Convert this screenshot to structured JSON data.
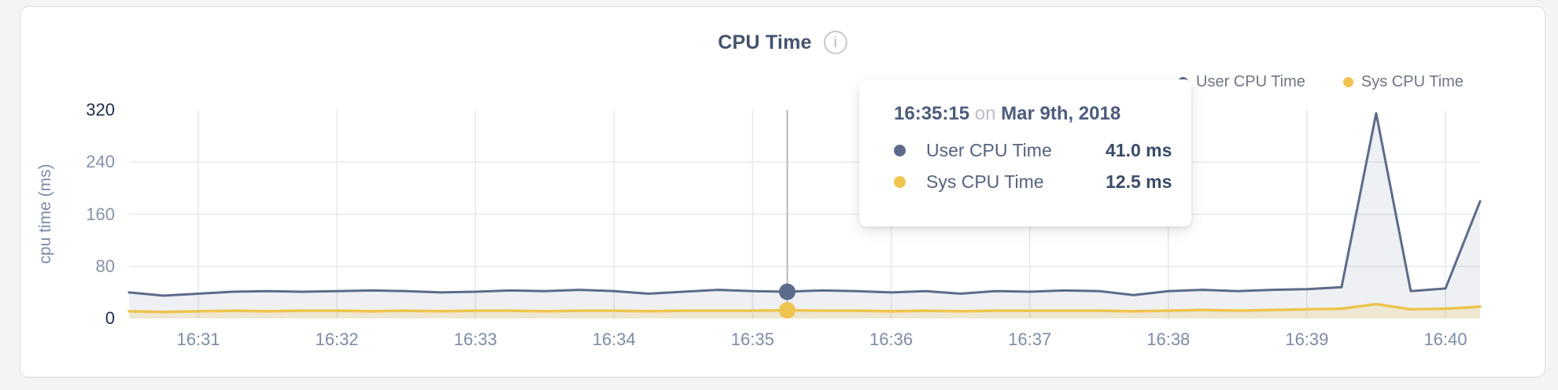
{
  "header": {
    "title": "CPU Time",
    "info_icon": "i"
  },
  "legend": [
    {
      "label": "User CPU Time",
      "color": "#5d6b8a"
    },
    {
      "label": "Sys CPU Time",
      "color": "#eec44f"
    }
  ],
  "tooltip": {
    "time": "16:35:15",
    "on_word": "on",
    "date": "Mar 9th, 2018",
    "highlight_index": 19,
    "rows": [
      {
        "label": "User CPU Time",
        "value": "41.0 ms",
        "color": "#5d6b8a"
      },
      {
        "label": "Sys CPU Time",
        "value": "12.5 ms",
        "color": "#eec44f"
      }
    ]
  },
  "chart_data": {
    "type": "area",
    "title": "CPU Time",
    "xlabel": "",
    "ylabel": "cpu time (ms)",
    "ylim": [
      0,
      320
    ],
    "grid": true,
    "legend_position": "top-right",
    "yticks": [
      {
        "label": "320",
        "value": 320,
        "strong": true,
        "grid": false
      },
      {
        "label": "240",
        "value": 240,
        "strong": false,
        "grid": true
      },
      {
        "label": "160",
        "value": 160,
        "strong": false,
        "grid": true
      },
      {
        "label": "80",
        "value": 80,
        "strong": false,
        "grid": true
      },
      {
        "label": "0",
        "value": 0,
        "strong": true,
        "grid": false
      }
    ],
    "xticks": [
      "16:31",
      "16:32",
      "16:33",
      "16:34",
      "16:35",
      "16:36",
      "16:37",
      "16:38",
      "16:39",
      "16:40"
    ],
    "x": [
      "16:30:30",
      "16:30:45",
      "16:31:00",
      "16:31:15",
      "16:31:30",
      "16:31:45",
      "16:32:00",
      "16:32:15",
      "16:32:30",
      "16:32:45",
      "16:33:00",
      "16:33:15",
      "16:33:30",
      "16:33:45",
      "16:34:00",
      "16:34:15",
      "16:34:30",
      "16:34:45",
      "16:35:00",
      "16:35:15",
      "16:35:30",
      "16:35:45",
      "16:36:00",
      "16:36:15",
      "16:36:30",
      "16:36:45",
      "16:37:00",
      "16:37:15",
      "16:37:30",
      "16:37:45",
      "16:38:00",
      "16:38:15",
      "16:38:30",
      "16:38:45",
      "16:39:00",
      "16:39:15",
      "16:39:30",
      "16:39:45",
      "16:40:00",
      "16:40:15"
    ],
    "series": [
      {
        "name": "User CPU Time",
        "color": "#5d6b8a",
        "fill": "rgba(93,107,138,0.10)",
        "line_width": 3,
        "values": [
          40,
          35,
          38,
          41,
          42,
          41,
          42,
          43,
          42,
          40,
          41,
          43,
          42,
          44,
          42,
          38,
          41,
          44,
          42,
          41,
          43,
          42,
          40,
          42,
          38,
          42,
          41,
          43,
          42,
          36,
          42,
          44,
          42,
          44,
          45,
          48,
          315,
          42,
          46,
          180
        ]
      },
      {
        "name": "Sys CPU Time",
        "color": "#eec44f",
        "fill": "rgba(238,196,79,0.20)",
        "line_width": 3.5,
        "values": [
          11,
          10,
          11,
          12,
          11,
          12,
          12,
          11,
          12,
          11,
          12,
          12,
          11,
          12,
          12,
          11,
          12,
          12,
          12,
          12.5,
          12,
          12,
          11,
          12,
          11,
          12,
          12,
          12,
          12,
          11,
          12,
          13,
          12,
          13,
          14,
          15,
          22,
          14,
          15,
          18
        ]
      }
    ],
    "crosshair_color": "#b6b6b6",
    "gridline_color": "#e7e8ea"
  }
}
